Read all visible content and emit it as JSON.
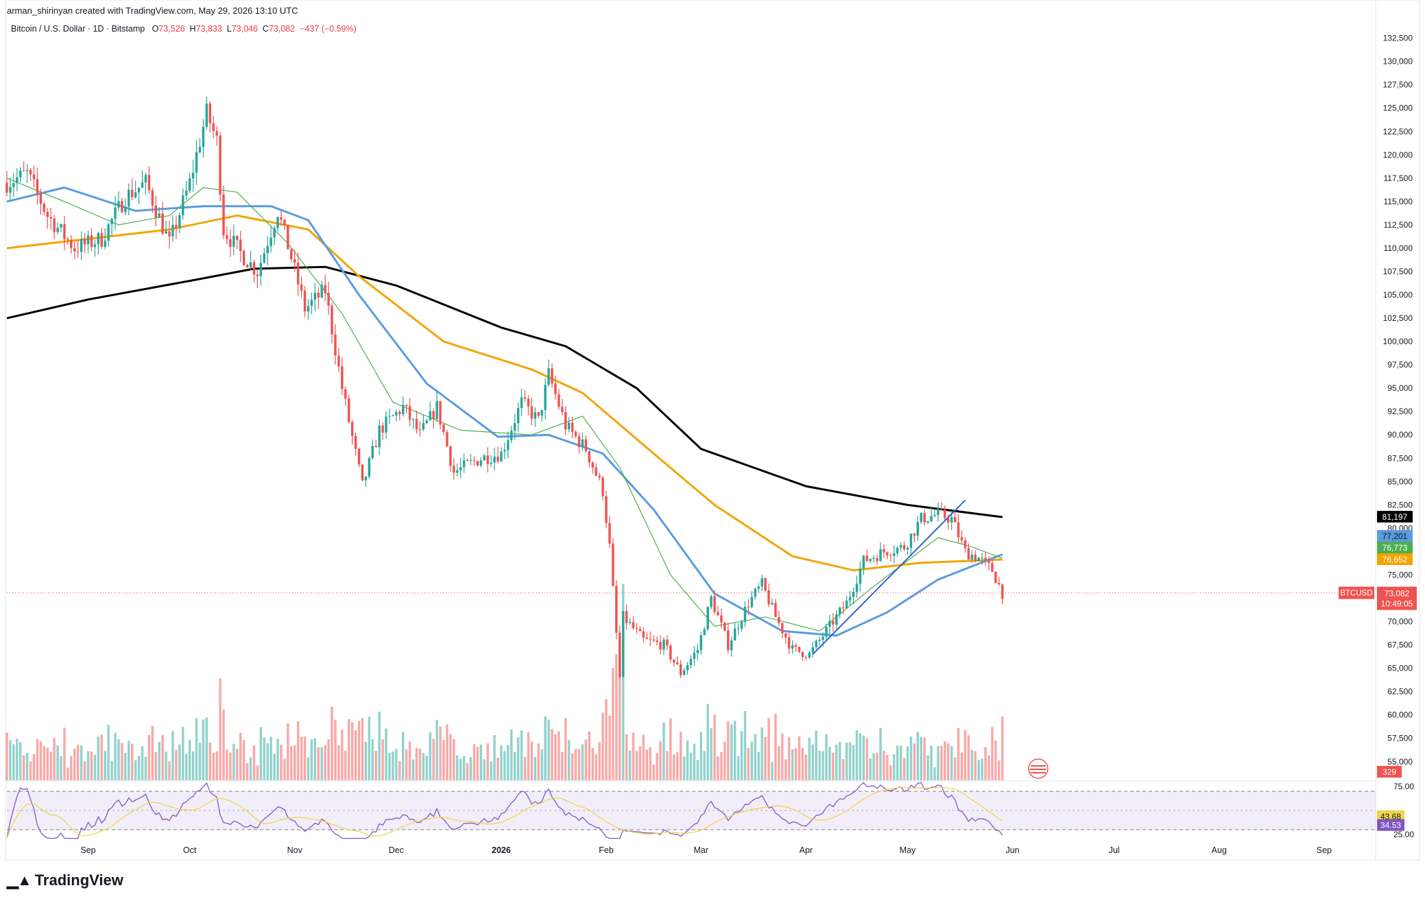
{
  "header": {
    "created_by": "arman_shirinyan created with TradingView.com, May 29, 2026 13:10 UTC"
  },
  "symbol_line": {
    "name": "Bitcoin / U.S. Dollar · 1D · Bitstamp",
    "open_label": "O",
    "open": "73,526",
    "high_label": "H",
    "high": "73,833",
    "low_label": "L",
    "low": "73,046",
    "close_label": "C",
    "close": "73,082",
    "change": "−437 (−0.59%)"
  },
  "brand": {
    "logo_text": "TradingView",
    "logo_icon": "tradingview-logo-icon"
  },
  "colors": {
    "up": "#26a69a",
    "down": "#ef5350",
    "ma_black": "#000000",
    "ma_blue": "#5b9bdf",
    "ma_orange": "#f4a300",
    "ma_green": "#4caf50",
    "rsi": "#7e57c2",
    "rsi_ma": "#f2d34b",
    "trendline": "#2f5fd6"
  },
  "chart_data": {
    "type": "candlestick",
    "x_axis": {
      "labels": [
        "Sep",
        "Oct",
        "Nov",
        "Dec",
        "2026",
        "Feb",
        "Mar",
        "Apr",
        "May",
        "Jun",
        "Jul",
        "Aug",
        "Sep"
      ],
      "range": [
        "2025-08-08",
        "2026-09-15"
      ]
    },
    "y_axis": {
      "scale": "linear",
      "range": [
        53000,
        133500
      ],
      "ticks": [
        "132,500",
        "130,000",
        "127,500",
        "125,000",
        "122,500",
        "120,000",
        "117,500",
        "115,000",
        "112,500",
        "110,000",
        "107,500",
        "105,000",
        "102,500",
        "100,000",
        "97,500",
        "95,000",
        "92,500",
        "90,000",
        "87,500",
        "85,000",
        "82,500",
        "80,000",
        "77,500",
        "75,000",
        "72,500",
        "70,000",
        "67,500",
        "65,000",
        "62,500",
        "60,000",
        "57,500",
        "55,000"
      ]
    },
    "price_path": [
      [
        "2025-08-08",
        117000
      ],
      [
        "2025-08-14",
        118000
      ],
      [
        "2025-08-20",
        113500
      ],
      [
        "2025-08-28",
        110000
      ],
      [
        "2025-09-05",
        111000
      ],
      [
        "2025-09-12",
        115500
      ],
      [
        "2025-09-18",
        117000
      ],
      [
        "2025-09-25",
        110500
      ],
      [
        "2025-10-01",
        117000
      ],
      [
        "2025-10-06",
        124500
      ],
      [
        "2025-10-09",
        121500
      ],
      [
        "2025-10-11",
        112000
      ],
      [
        "2025-10-16",
        109500
      ],
      [
        "2025-10-21",
        107500
      ],
      [
        "2025-10-27",
        114000
      ],
      [
        "2025-10-31",
        109000
      ],
      [
        "2025-11-04",
        103500
      ],
      [
        "2025-11-10",
        105500
      ],
      [
        "2025-11-15",
        95000
      ],
      [
        "2025-11-21",
        84500
      ],
      [
        "2025-11-26",
        90500
      ],
      [
        "2025-12-03",
        93000
      ],
      [
        "2025-12-08",
        90000
      ],
      [
        "2025-12-13",
        93000
      ],
      [
        "2025-12-18",
        86000
      ],
      [
        "2025-12-26",
        87500
      ],
      [
        "2026-01-01",
        88000
      ],
      [
        "2026-01-07",
        93500
      ],
      [
        "2026-01-12",
        91500
      ],
      [
        "2026-01-15",
        96500
      ],
      [
        "2026-01-20",
        91000
      ],
      [
        "2026-01-26",
        88500
      ],
      [
        "2026-01-31",
        84000
      ],
      [
        "2026-02-02",
        78000
      ],
      [
        "2026-02-05",
        64000
      ],
      [
        "2026-02-06",
        70500
      ],
      [
        "2026-02-12",
        68000
      ],
      [
        "2026-02-18",
        67500
      ],
      [
        "2026-02-23",
        64500
      ],
      [
        "2026-02-28",
        67000
      ],
      [
        "2026-03-04",
        72500
      ],
      [
        "2026-03-09",
        67500
      ],
      [
        "2026-03-15",
        72000
      ],
      [
        "2026-03-19",
        74000
      ],
      [
        "2026-03-23",
        70500
      ],
      [
        "2026-03-28",
        67000
      ],
      [
        "2026-04-02",
        66500
      ],
      [
        "2026-04-07",
        69000
      ],
      [
        "2026-04-13",
        72000
      ],
      [
        "2026-04-18",
        76500
      ],
      [
        "2026-04-24",
        77500
      ],
      [
        "2026-04-30",
        78000
      ],
      [
        "2026-05-05",
        81000
      ],
      [
        "2026-05-10",
        81500
      ],
      [
        "2026-05-14",
        81000
      ],
      [
        "2026-05-18",
        77500
      ],
      [
        "2026-05-22",
        76800
      ],
      [
        "2026-05-26",
        75500
      ],
      [
        "2026-05-29",
        73082
      ]
    ],
    "series": [
      {
        "name": "",
        "color_key": "ma_black",
        "points": [
          [
            "2025-08-08",
            102500
          ],
          [
            "2025-09-01",
            104500
          ],
          [
            "2025-10-01",
            106500
          ],
          [
            "2025-10-20",
            107800
          ],
          [
            "2025-11-10",
            108000
          ],
          [
            "2025-12-01",
            106000
          ],
          [
            "2026-01-01",
            101500
          ],
          [
            "2026-01-20",
            99500
          ],
          [
            "2026-02-10",
            95000
          ],
          [
            "2026-03-01",
            88500
          ],
          [
            "2026-04-01",
            84500
          ],
          [
            "2026-05-01",
            82500
          ],
          [
            "2026-05-29",
            81197
          ]
        ]
      },
      {
        "name": "",
        "color_key": "ma_orange",
        "points": [
          [
            "2025-08-08",
            110000
          ],
          [
            "2025-09-01",
            111000
          ],
          [
            "2025-09-25",
            112000
          ],
          [
            "2025-10-15",
            113500
          ],
          [
            "2025-11-05",
            112000
          ],
          [
            "2025-11-20",
            107000
          ],
          [
            "2025-12-15",
            100000
          ],
          [
            "2026-01-10",
            97000
          ],
          [
            "2026-01-25",
            94500
          ],
          [
            "2026-02-15",
            88000
          ],
          [
            "2026-03-05",
            82500
          ],
          [
            "2026-03-28",
            77000
          ],
          [
            "2026-04-15",
            75500
          ],
          [
            "2026-05-05",
            76300
          ],
          [
            "2026-05-29",
            76652
          ]
        ]
      },
      {
        "name": "",
        "color_key": "ma_blue",
        "points": [
          [
            "2025-08-08",
            115000
          ],
          [
            "2025-08-25",
            116500
          ],
          [
            "2025-09-15",
            114000
          ],
          [
            "2025-10-05",
            114500
          ],
          [
            "2025-10-25",
            114500
          ],
          [
            "2025-11-05",
            113000
          ],
          [
            "2025-11-20",
            105000
          ],
          [
            "2025-12-10",
            95500
          ],
          [
            "2025-12-31",
            89800
          ],
          [
            "2026-01-15",
            90000
          ],
          [
            "2026-01-31",
            88000
          ],
          [
            "2026-02-15",
            82000
          ],
          [
            "2026-03-05",
            73000
          ],
          [
            "2026-03-25",
            69000
          ],
          [
            "2026-04-10",
            68500
          ],
          [
            "2026-04-25",
            71000
          ],
          [
            "2026-05-10",
            74500
          ],
          [
            "2026-05-29",
            77201
          ]
        ]
      },
      {
        "name": "",
        "color_key": "ma_green",
        "points": [
          [
            "2025-08-08",
            117500
          ],
          [
            "2025-08-25",
            115000
          ],
          [
            "2025-09-10",
            112500
          ],
          [
            "2025-09-25",
            113500
          ],
          [
            "2025-10-05",
            116500
          ],
          [
            "2025-10-15",
            116000
          ],
          [
            "2025-10-30",
            110500
          ],
          [
            "2025-11-15",
            103000
          ],
          [
            "2025-11-30",
            93500
          ],
          [
            "2025-12-20",
            90500
          ],
          [
            "2026-01-10",
            90000
          ],
          [
            "2026-01-25",
            92000
          ],
          [
            "2026-02-05",
            86500
          ],
          [
            "2026-02-20",
            75000
          ],
          [
            "2026-03-05",
            69500
          ],
          [
            "2026-03-20",
            70500
          ],
          [
            "2026-04-05",
            69000
          ],
          [
            "2026-04-20",
            73500
          ],
          [
            "2026-05-10",
            79000
          ],
          [
            "2026-05-20",
            78000
          ],
          [
            "2026-05-29",
            76773
          ]
        ]
      }
    ],
    "trendline": [
      [
        "2026-04-03",
        66500
      ],
      [
        "2026-05-18",
        83000
      ]
    ],
    "current_price_label": "BTCUSD",
    "current_price": "73,082",
    "countdown": "10:49:05",
    "ma_value_labels": [
      {
        "value": "81,197",
        "color_key": "ma_black"
      },
      {
        "value": "77,201",
        "color_key": "ma_blue"
      },
      {
        "value": "76,773",
        "color_key": "ma_green"
      },
      {
        "value": "76,652",
        "color_key": "ma_orange"
      }
    ],
    "volume": {
      "last_label": "329",
      "max_units": 100
    },
    "rsi": {
      "range": [
        20,
        80
      ],
      "ticks": [
        "75.00",
        "25.00"
      ],
      "levels": [
        70,
        50,
        30
      ],
      "value": "34.53",
      "ma_value": "43.68"
    }
  }
}
